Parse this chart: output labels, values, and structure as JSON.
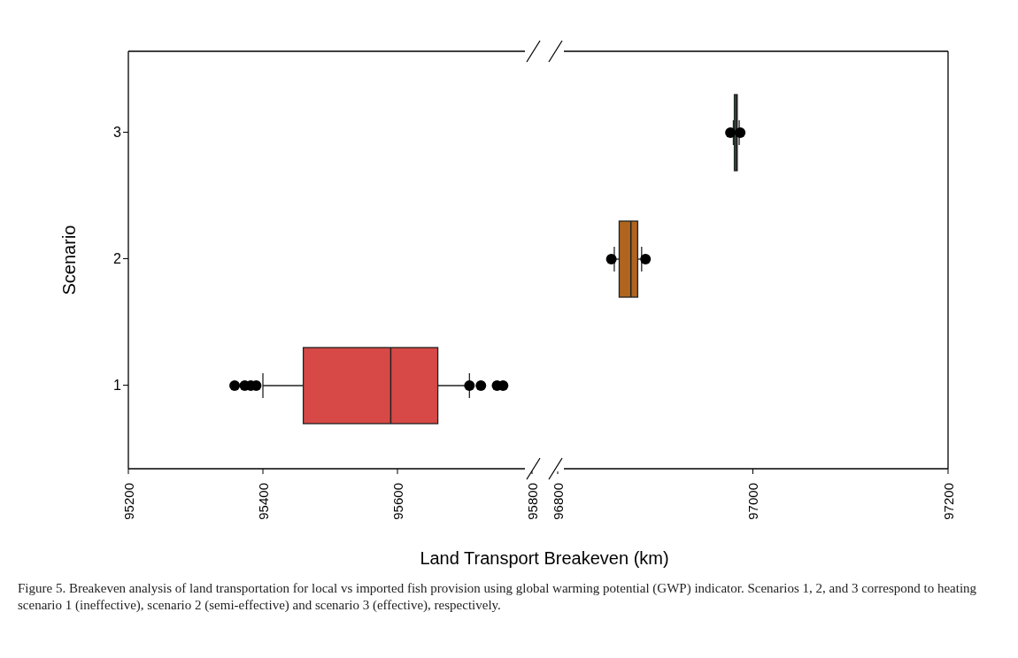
{
  "chart_data": [
    {
      "type": "box",
      "orientation": "horizontal",
      "ylabel": "Scenario",
      "xlabel": "Land Transport Breakeven (km)",
      "categories": [
        "3",
        "2",
        "1"
      ],
      "xlim": [
        95200,
        95800
      ],
      "xticks": [
        95200,
        95400,
        95600,
        95800
      ],
      "boxes": [
        null,
        null,
        {
          "low": 95400,
          "q1": 95460,
          "median": 95590,
          "q3": 95660,
          "high": 95707,
          "outliers": [
            95358,
            95373,
            95382,
            95390,
            95707,
            95724,
            95748,
            95757
          ]
        }
      ],
      "colors": [
        null,
        null,
        "#d74946"
      ],
      "annotations": [
        "Figure 5. Breakeven analysis of land transportation for local vs imported fish provision using global warming potential (GWP) indicator. Scenarios 1, 2, and 3 correspond to heating scenario 1 (ineffective), scenario 2 (semi-effective) and scenario 3 (effective), respectively."
      ]
    },
    {
      "type": "box",
      "orientation": "horizontal",
      "tick_labels": "x",
      "categories": [
        "3",
        "2",
        "1"
      ],
      "xlim": [
        96800,
        97200
      ],
      "xticks": [
        96800,
        97000,
        97200
      ],
      "boxes": [
        {
          "low": 96980,
          "q1": 96981,
          "median": 96983,
          "q3": 96984,
          "high": 96986,
          "outliers": [
            96977,
            96987
          ]
        },
        {
          "low": 96858,
          "q1": 96863,
          "median": 96875,
          "q3": 96882,
          "high": 96886,
          "outliers": [
            96855,
            96890
          ]
        },
        null
      ],
      "colors": [
        "#2f6b48",
        "#b0651e",
        null
      ]
    }
  ]
}
